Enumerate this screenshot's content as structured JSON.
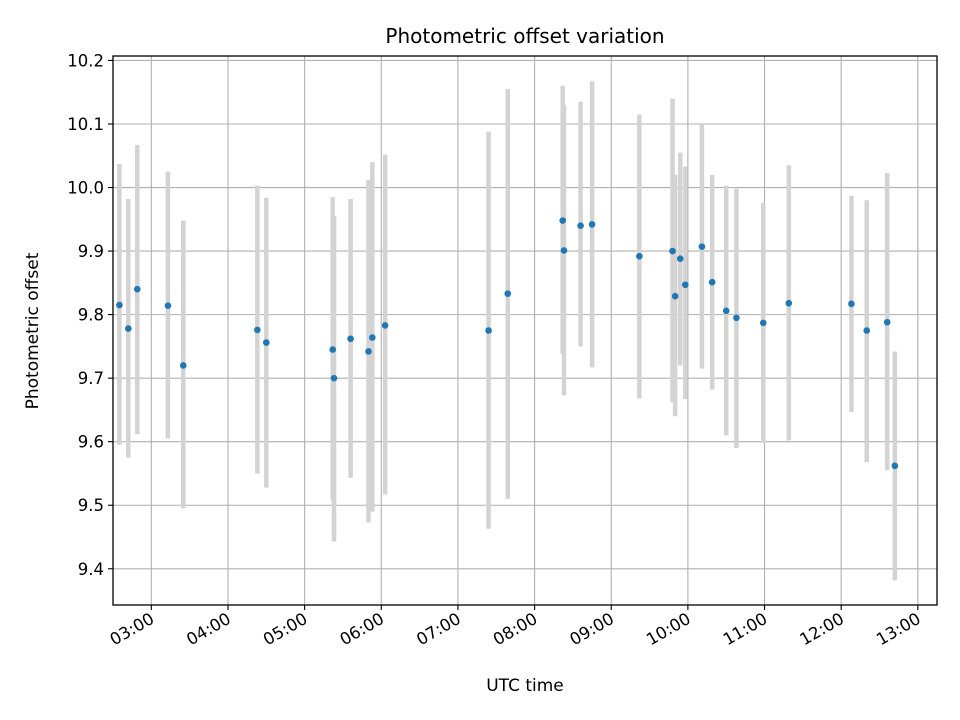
{
  "chart_data": {
    "type": "scatter",
    "title": "Photometric offset variation",
    "xlabel": "UTC time",
    "ylabel": "Photometric offset",
    "x_ticks": [
      "03:00",
      "04:00",
      "05:00",
      "06:00",
      "07:00",
      "08:00",
      "09:00",
      "10:00",
      "11:00",
      "12:00",
      "13:00"
    ],
    "y_ticks": [
      "9.4",
      "9.5",
      "9.6",
      "9.7",
      "9.8",
      "9.9",
      "10.0",
      "10.1",
      "10.2"
    ],
    "xlim": [
      "02:30",
      "13:15"
    ],
    "ylim": [
      9.343,
      10.207
    ],
    "grid": true,
    "marker_color": "#1f77b4",
    "errorbar_color": "#d3d3d3",
    "points": [
      {
        "x": "02:35",
        "y": 9.815,
        "ylow": 9.595,
        "yhigh": 10.037
      },
      {
        "x": "02:42",
        "y": 9.778,
        "ylow": 9.575,
        "yhigh": 9.982
      },
      {
        "x": "02:49",
        "y": 9.84,
        "ylow": 9.612,
        "yhigh": 10.067
      },
      {
        "x": "03:13",
        "y": 9.814,
        "ylow": 9.605,
        "yhigh": 10.025
      },
      {
        "x": "03:25",
        "y": 9.72,
        "ylow": 9.495,
        "yhigh": 9.948
      },
      {
        "x": "04:23",
        "y": 9.776,
        "ylow": 9.55,
        "yhigh": 10.003
      },
      {
        "x": "04:30",
        "y": 9.756,
        "ylow": 9.528,
        "yhigh": 9.984
      },
      {
        "x": "05:22",
        "y": 9.745,
        "ylow": 9.508,
        "yhigh": 9.985
      },
      {
        "x": "05:23",
        "y": 9.7,
        "ylow": 9.443,
        "yhigh": 9.955
      },
      {
        "x": "05:36",
        "y": 9.762,
        "ylow": 9.543,
        "yhigh": 9.982
      },
      {
        "x": "05:50",
        "y": 9.742,
        "ylow": 9.473,
        "yhigh": 10.012
      },
      {
        "x": "05:53",
        "y": 9.764,
        "ylow": 9.49,
        "yhigh": 10.04
      },
      {
        "x": "06:03",
        "y": 9.783,
        "ylow": 9.517,
        "yhigh": 10.052
      },
      {
        "x": "07:24",
        "y": 9.775,
        "ylow": 9.463,
        "yhigh": 10.088
      },
      {
        "x": "07:39",
        "y": 9.833,
        "ylow": 9.51,
        "yhigh": 10.155
      },
      {
        "x": "08:22",
        "y": 9.948,
        "ylow": 9.738,
        "yhigh": 10.16
      },
      {
        "x": "08:23",
        "y": 9.901,
        "ylow": 9.673,
        "yhigh": 10.13
      },
      {
        "x": "08:36",
        "y": 9.94,
        "ylow": 9.75,
        "yhigh": 10.135
      },
      {
        "x": "08:45",
        "y": 9.942,
        "ylow": 9.717,
        "yhigh": 10.167
      },
      {
        "x": "09:22",
        "y": 9.892,
        "ylow": 9.668,
        "yhigh": 10.115
      },
      {
        "x": "09:48",
        "y": 9.9,
        "ylow": 9.662,
        "yhigh": 10.14
      },
      {
        "x": "09:50",
        "y": 9.829,
        "ylow": 9.64,
        "yhigh": 10.02
      },
      {
        "x": "09:54",
        "y": 9.888,
        "ylow": 9.72,
        "yhigh": 10.055
      },
      {
        "x": "09:58",
        "y": 9.847,
        "ylow": 9.667,
        "yhigh": 10.033
      },
      {
        "x": "10:11",
        "y": 9.907,
        "ylow": 9.715,
        "yhigh": 10.1
      },
      {
        "x": "10:19",
        "y": 9.851,
        "ylow": 9.682,
        "yhigh": 10.02
      },
      {
        "x": "10:30",
        "y": 9.806,
        "ylow": 9.61,
        "yhigh": 10.003
      },
      {
        "x": "10:38",
        "y": 9.795,
        "ylow": 9.59,
        "yhigh": 9.998
      },
      {
        "x": "10:59",
        "y": 9.787,
        "ylow": 9.598,
        "yhigh": 9.976
      },
      {
        "x": "11:19",
        "y": 9.818,
        "ylow": 9.602,
        "yhigh": 10.035
      },
      {
        "x": "12:08",
        "y": 9.817,
        "ylow": 9.647,
        "yhigh": 9.987
      },
      {
        "x": "12:20",
        "y": 9.775,
        "ylow": 9.568,
        "yhigh": 9.98
      },
      {
        "x": "12:36",
        "y": 9.788,
        "ylow": 9.555,
        "yhigh": 10.023
      },
      {
        "x": "12:42",
        "y": 9.562,
        "ylow": 9.382,
        "yhigh": 9.742
      }
    ]
  }
}
